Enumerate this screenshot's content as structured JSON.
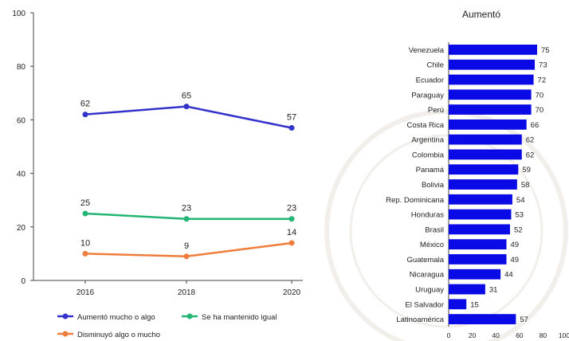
{
  "chart_data": [
    {
      "type": "line",
      "x": [
        2016,
        2018,
        2020
      ],
      "ylim": [
        0,
        100
      ],
      "yticks": [
        0,
        20,
        40,
        60,
        80,
        100
      ],
      "series": [
        {
          "name": "Aumentó mucho o algo",
          "values": [
            62,
            65,
            57
          ],
          "color": "#3333cc"
        },
        {
          "name": "Se ha mantenido igual",
          "values": [
            25,
            23,
            23
          ],
          "color": "#22b573"
        },
        {
          "name": "Disminuyó algo o mucho",
          "values": [
            10,
            9,
            14
          ],
          "color": "#ee7d3b"
        }
      ],
      "grid": false,
      "legend_position": "bottom"
    },
    {
      "type": "bar",
      "orientation": "horizontal",
      "title": "Aumentó",
      "categories": [
        "Venezuela",
        "Chile",
        "Ecuador",
        "Paraguay",
        "Perú",
        "Costa Rica",
        "Argentina",
        "Colombia",
        "Panamá",
        "Bolivia",
        "Rep. Dominicana",
        "Honduras",
        "Brasil",
        "México",
        "Guatemala",
        "Nicaragua",
        "Uruguay",
        "El Salvador",
        "Latinoamérica"
      ],
      "values": [
        75,
        73,
        72,
        70,
        70,
        66,
        62,
        62,
        59,
        58,
        54,
        53,
        52,
        49,
        49,
        44,
        31,
        15,
        57
      ],
      "xlim": [
        0,
        100
      ],
      "xticks": [
        0,
        20,
        40,
        60,
        80,
        100
      ],
      "color": "#0a0ae6"
    }
  ]
}
